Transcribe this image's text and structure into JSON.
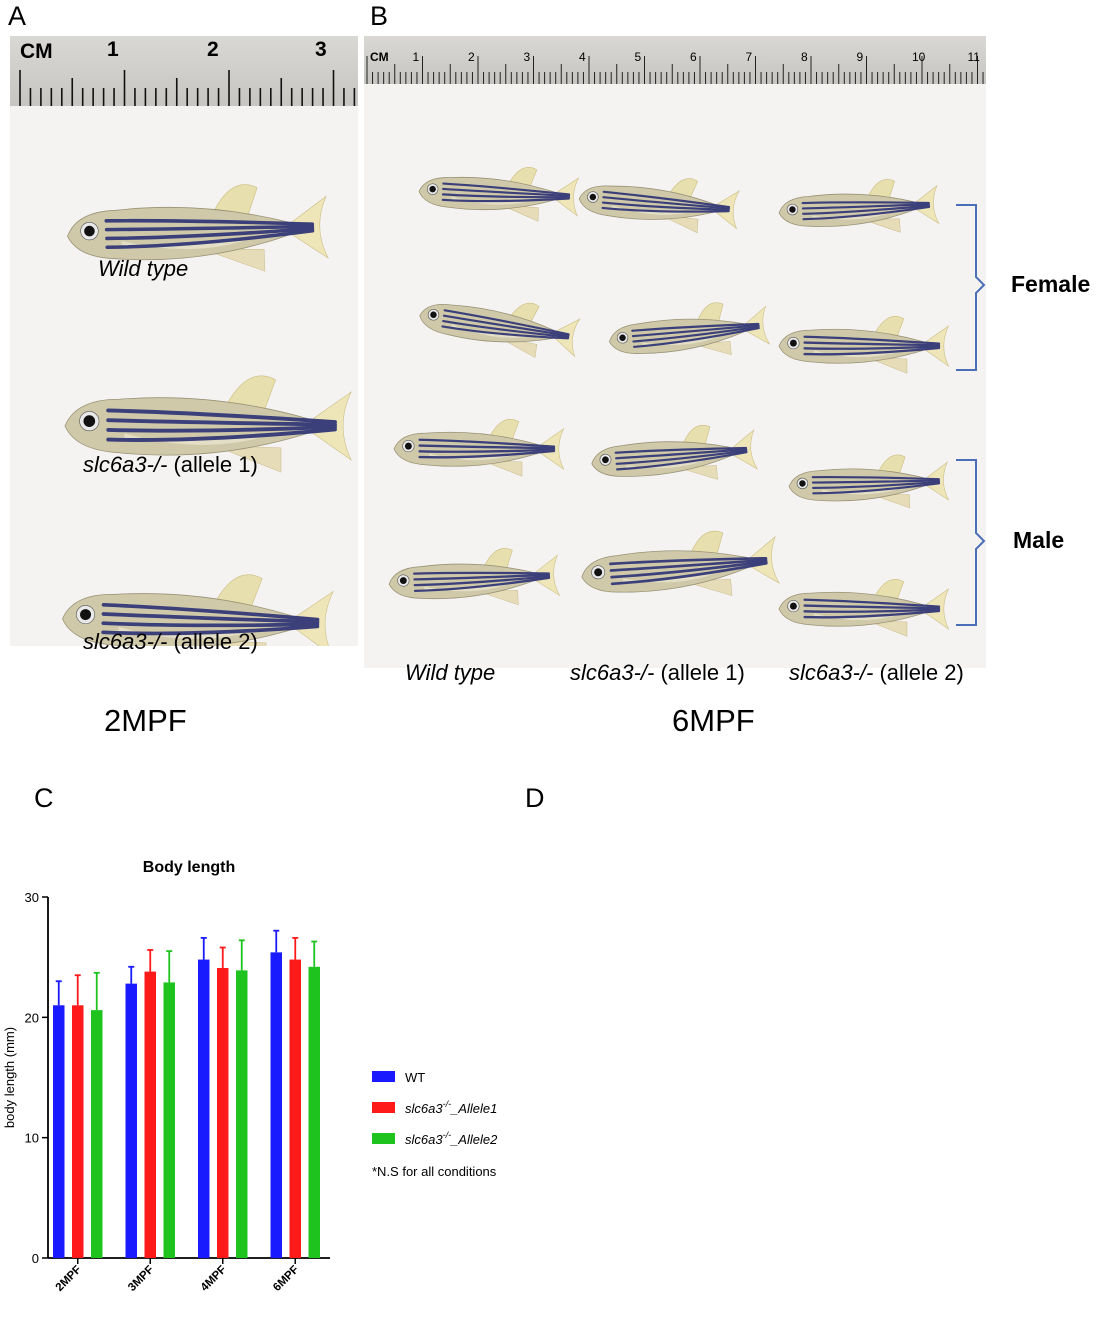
{
  "panels": {
    "A": {
      "letter": "A",
      "ruler": {
        "unit": "CM",
        "ticks": [
          "1",
          "2",
          "3"
        ]
      },
      "labels": [
        {
          "italic": "Wild type",
          "rest": ""
        },
        {
          "italic": "slc6a3-/-",
          "rest": " (allele 1)"
        },
        {
          "italic": "slc6a3-/-",
          "rest": " (allele 2)"
        }
      ],
      "stage": "2MPF"
    },
    "B": {
      "letter": "B",
      "ruler": {
        "unit": "CM",
        "ticks": [
          "1",
          "2",
          "3",
          "4",
          "5",
          "6",
          "7",
          "8",
          "9",
          "10",
          "11"
        ]
      },
      "columns": [
        {
          "italic": "Wild type",
          "rest": ""
        },
        {
          "italic": "slc6a3-/-",
          "rest": " (allele 1)"
        },
        {
          "italic": "slc6a3-/-",
          "rest": " (allele 2)"
        }
      ],
      "groups": {
        "female": "Female",
        "male": "Male"
      },
      "stage": "6MPF"
    },
    "C": {
      "letter": "C"
    },
    "D": {
      "letter": "D"
    }
  },
  "colors": {
    "wt": "#1a1aff",
    "allele1": "#ff1a1a",
    "allele2": "#1ec31e"
  },
  "chart_data": {
    "type": "bar",
    "title": "Body length",
    "ylabel": "body length (mm)",
    "xlabel": "",
    "ylim": [
      0,
      30
    ],
    "yticks": [
      0,
      10,
      20,
      30
    ],
    "categories": [
      "2MPF",
      "3MPF",
      "4MPF",
      "6MPF"
    ],
    "series": [
      {
        "name": "WT",
        "name_sup": "",
        "name_tail": "",
        "values": [
          21.0,
          22.8,
          24.8,
          25.4
        ],
        "errors": [
          2.0,
          1.4,
          1.8,
          1.8
        ]
      },
      {
        "name": "slc6a3",
        "name_sup": "-/-",
        "name_tail": "_Allele1",
        "values": [
          21.0,
          23.8,
          24.1,
          24.8
        ],
        "errors": [
          2.5,
          1.8,
          1.7,
          1.8
        ]
      },
      {
        "name": "slc6a3",
        "name_sup": "-/-",
        "name_tail": "_Allele2",
        "values": [
          20.6,
          22.9,
          23.9,
          24.2
        ],
        "errors": [
          3.1,
          2.6,
          2.5,
          2.1
        ]
      }
    ],
    "legend_position": "right",
    "note": "*N.S for all conditions"
  }
}
